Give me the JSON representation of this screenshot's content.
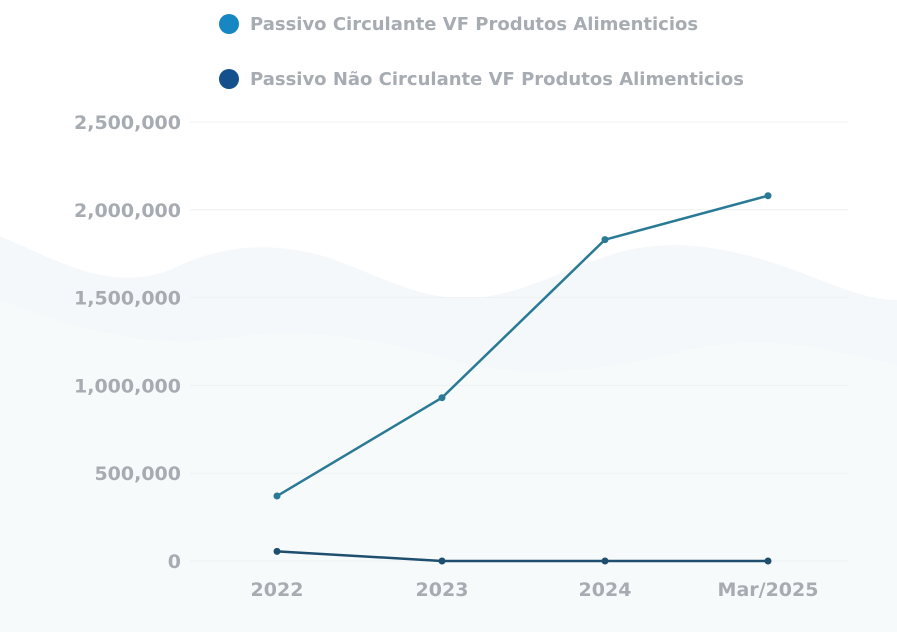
{
  "chart_data": {
    "type": "line",
    "categories": [
      "2022",
      "2023",
      "2024",
      "Mar/2025"
    ],
    "series": [
      {
        "name": "Passivo Circulante VF Produtos Alimenticios",
        "color": "#1787c3",
        "line_color": "#2a7a96",
        "values": [
          370000,
          930000,
          1830000,
          2080000
        ]
      },
      {
        "name": "Passivo Não Circulante VF Produtos Alimenticios",
        "color": "#14508c",
        "line_color": "#1f4f6e",
        "values": [
          55000,
          0,
          0,
          0
        ]
      }
    ],
    "y_ticks": [
      "2,500,000",
      "2,000,000",
      "1,500,000",
      "1,000,000",
      "500,000",
      "0"
    ],
    "ylim": [
      0,
      2500000
    ],
    "grid": true,
    "legend_position": "top"
  }
}
